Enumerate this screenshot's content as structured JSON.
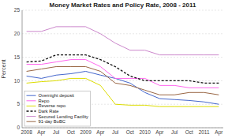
{
  "chart_data": {
    "type": "line",
    "title": "Money Market Rates and Policy Rate, 2008 - 2011",
    "ylabel": "Percent",
    "categories": [
      "2008",
      "Apr",
      "Jul",
      "Oct",
      "2009",
      "Apr",
      "Jul",
      "Oct",
      "2010",
      "Apr",
      "Jul",
      "Oct",
      "2011",
      "Apr"
    ],
    "series": [
      {
        "name": "Overnight deposit",
        "color": "#4466cc",
        "line_style": "solid",
        "values": [
          11.0,
          10.5,
          11.2,
          11.5,
          12.0,
          11.2,
          10.5,
          9.5,
          7.5,
          6.2,
          6.0,
          5.8,
          5.5,
          5.0
        ]
      },
      {
        "name": "Repo",
        "color": "#ff66ee",
        "line_style": "solid",
        "values": [
          13.5,
          13.5,
          14.0,
          14.5,
          14.5,
          13.0,
          10.5,
          10.5,
          10.5,
          9.0,
          9.0,
          8.5,
          8.5,
          8.5
        ]
      },
      {
        "name": "Reverse repo",
        "color": "#dddd00",
        "line_style": "solid",
        "values": [
          9.5,
          9.8,
          10.0,
          10.5,
          10.5,
          9.0,
          5.0,
          4.8,
          4.8,
          4.5,
          4.5,
          4.5,
          4.5,
          4.5
        ]
      },
      {
        "name": "Dark Rate",
        "color": "#111111",
        "line_style": "dashed",
        "values": [
          14.0,
          14.2,
          15.5,
          15.5,
          15.5,
          14.5,
          13.0,
          11.0,
          10.0,
          10.0,
          10.0,
          10.0,
          9.5,
          9.5
        ]
      },
      {
        "name": "Secured Lending Facility",
        "color": "#cc88cc",
        "line_style": "solid",
        "values": [
          20.5,
          20.5,
          21.5,
          21.5,
          21.5,
          20.0,
          18.0,
          16.5,
          16.5,
          15.5,
          15.5,
          15.5,
          15.5,
          15.5
        ]
      },
      {
        "name": "91-day BoBC",
        "color": "#996644",
        "line_style": "solid",
        "values": [
          12.0,
          12.5,
          13.0,
          13.0,
          13.0,
          12.0,
          9.5,
          9.0,
          8.0,
          7.0,
          7.0,
          7.5,
          7.5,
          7.0
        ]
      }
    ],
    "ylim": [
      0,
      25
    ],
    "yticks": [
      0,
      5,
      10,
      15,
      20,
      25
    ],
    "grid": true,
    "legend": "lower left"
  }
}
